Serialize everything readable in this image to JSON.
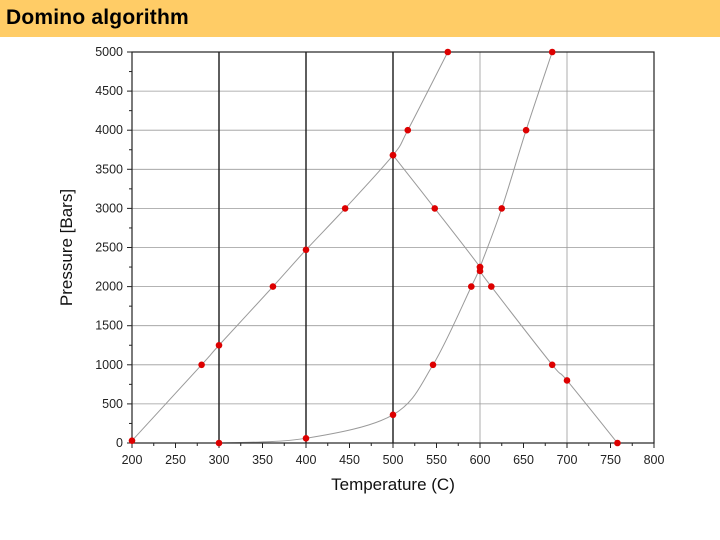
{
  "slide": {
    "title": "Domino algorithm"
  },
  "colors": {
    "title_bar": "#ffcc66",
    "point": "#dd0000",
    "curve": "#9a9a9a",
    "grid_light": "#9a9a9a",
    "grid_dark": "#1a1a1a"
  },
  "chart_data": {
    "type": "scatter",
    "title": "",
    "xlabel": "Temperature (C)",
    "ylabel": "Pressure [Bars]",
    "xlim": [
      200,
      800
    ],
    "ylim": [
      0,
      5000
    ],
    "xticks": [
      200,
      250,
      300,
      350,
      400,
      450,
      500,
      550,
      600,
      650,
      700,
      750,
      800
    ],
    "yticks": [
      0,
      500,
      1000,
      1500,
      2000,
      2500,
      3000,
      3500,
      4000,
      4500,
      5000
    ],
    "grid": true,
    "grid_x": [
      300,
      400,
      500,
      600,
      700
    ],
    "grid_x_dark": [
      300,
      400,
      500
    ],
    "grid_y": [
      500,
      1000,
      1500,
      2000,
      2500,
      3000,
      3500,
      4000,
      4500
    ],
    "series": [
      {
        "points": [
          [
            200,
            30
          ],
          [
            280,
            1000
          ],
          [
            300,
            1250
          ],
          [
            362,
            2000
          ],
          [
            400,
            2470
          ],
          [
            445,
            3000
          ],
          [
            500,
            3680
          ],
          [
            517,
            4000
          ],
          [
            563,
            5000
          ]
        ]
      },
      {
        "points": [
          [
            500,
            3680
          ],
          [
            548,
            3000
          ],
          [
            600,
            2250
          ],
          [
            600,
            2200
          ],
          [
            613,
            2000
          ],
          [
            683,
            1000
          ],
          [
            700,
            800
          ],
          [
            758,
            0
          ]
        ]
      },
      {
        "points": [
          [
            300,
            0
          ],
          [
            400,
            60
          ],
          [
            500,
            360
          ],
          [
            546,
            1000
          ],
          [
            590,
            2000
          ],
          [
            600,
            2250
          ],
          [
            625,
            3000
          ],
          [
            653,
            4000
          ],
          [
            683,
            5000
          ]
        ]
      }
    ]
  }
}
